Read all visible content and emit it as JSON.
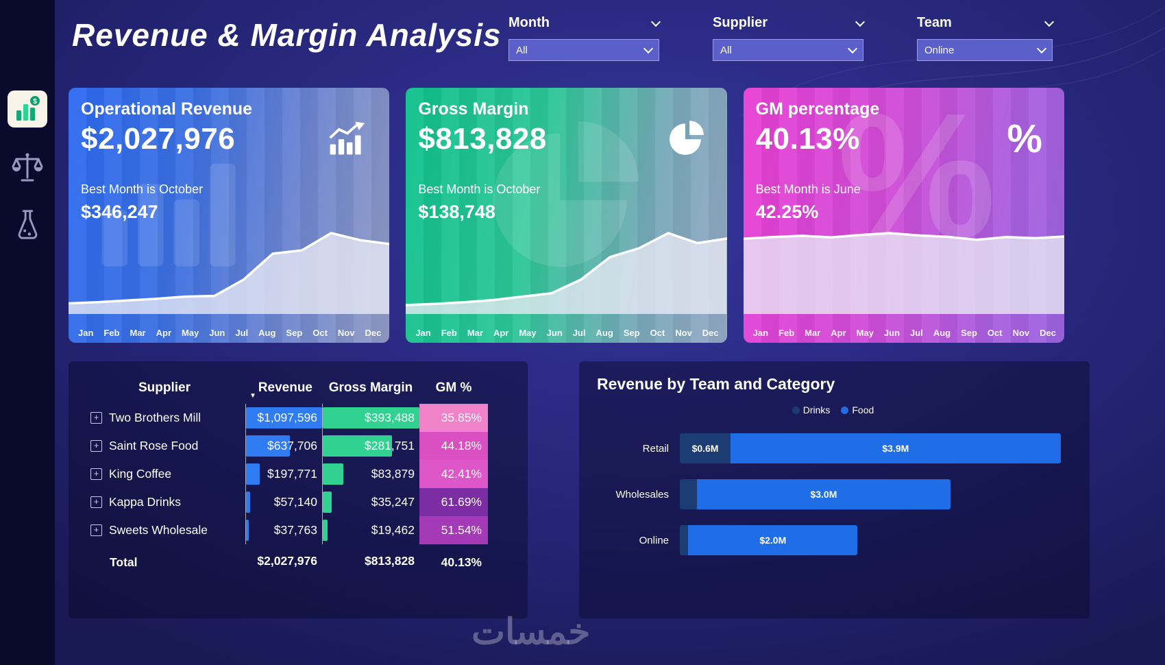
{
  "app": {
    "title": "Revenue & Margin Analysis",
    "watermark": "خمسات"
  },
  "filters": [
    {
      "label": "Month",
      "value": "All"
    },
    {
      "label": "Supplier",
      "value": "All"
    },
    {
      "label": "Team",
      "value": "Online"
    }
  ],
  "sidebar": {
    "items": [
      {
        "name": "revenue-analysis",
        "icon": "bar-chart-dollar-icon",
        "active": true
      },
      {
        "name": "compare",
        "icon": "scales-icon",
        "active": false
      },
      {
        "name": "lab",
        "icon": "flask-icon",
        "active": false
      }
    ]
  },
  "months": [
    "Jan",
    "Feb",
    "Mar",
    "Apr",
    "May",
    "Jun",
    "Jul",
    "Aug",
    "Sep",
    "Oct",
    "Nov",
    "Dec"
  ],
  "kpi_cards": [
    {
      "title": "Operational Revenue",
      "value": "$2,027,976",
      "best_label": "Best Month is October",
      "best_value": "$346,247",
      "icon": "bar-chart-trend-icon",
      "accent": "#2d6af0"
    },
    {
      "title": "Gross Margin",
      "value": "$813,828",
      "best_label": "Best Month is October",
      "best_value": "$138,748",
      "icon": "pie-chart-icon",
      "accent": "#0fc08c"
    },
    {
      "title": "GM percentage",
      "value": "40.13%",
      "best_label": "Best Month is June",
      "best_value": "42.25%",
      "icon": "percent-icon",
      "accent": "#e93fd4"
    }
  ],
  "table": {
    "headers": [
      "Supplier",
      "Revenue",
      "Gross Margin",
      "GM %"
    ],
    "rows": [
      {
        "supplier": "Two Brothers Mill",
        "revenue": "$1,097,596",
        "revenue_value": 1097596,
        "gross_margin": "$393,488",
        "gross_margin_value": 393488,
        "gm_pct": "35.85%",
        "gm_pct_color": "#ef82c8"
      },
      {
        "supplier": "Saint Rose Food",
        "revenue": "$637,706",
        "revenue_value": 637706,
        "gross_margin": "$281,751",
        "gross_margin_value": 281751,
        "gm_pct": "44.18%",
        "gm_pct_color": "#da50c3"
      },
      {
        "supplier": "King Coffee",
        "revenue": "$197,771",
        "revenue_value": 197771,
        "gross_margin": "$83,879",
        "gross_margin_value": 83879,
        "gm_pct": "42.41%",
        "gm_pct_color": "#dd57c9"
      },
      {
        "supplier": "Kappa Drinks",
        "revenue": "$57,140",
        "revenue_value": 57140,
        "gross_margin": "$35,247",
        "gross_margin_value": 35247,
        "gm_pct": "61.69%",
        "gm_pct_color": "#7c2da4"
      },
      {
        "supplier": "Sweets Wholesale",
        "revenue": "$37,763",
        "revenue_value": 37763,
        "gross_margin": "$19,462",
        "gross_margin_value": 19462,
        "gm_pct": "51.54%",
        "gm_pct_color": "#a53ab6"
      }
    ],
    "total": {
      "label": "Total",
      "revenue": "$2,027,976",
      "gross_margin": "$813,828",
      "gm_pct": "40.13%"
    }
  },
  "team_chart": {
    "title": "Revenue by Team and Category",
    "legend": [
      {
        "label": "Drinks",
        "color": "#1c3c74"
      },
      {
        "label": "Food",
        "color": "#1f6ee8"
      }
    ]
  },
  "chart_data": [
    {
      "type": "area",
      "name": "operational-revenue-by-month",
      "x": [
        "Jan",
        "Feb",
        "Mar",
        "Apr",
        "May",
        "Jun",
        "Jul",
        "Aug",
        "Sep",
        "Oct",
        "Nov",
        "Dec"
      ],
      "values": [
        35000,
        40000,
        48000,
        55000,
        65000,
        68000,
        140000,
        255000,
        270000,
        346247,
        315000,
        298000
      ],
      "title": "Operational Revenue monthly trend",
      "ylim": [
        0,
        360000
      ]
    },
    {
      "type": "area",
      "name": "gross-margin-by-month",
      "x": [
        "Jan",
        "Feb",
        "Mar",
        "Apr",
        "May",
        "Jun",
        "Jul",
        "Aug",
        "Sep",
        "Oct",
        "Nov",
        "Dec"
      ],
      "values": [
        11000,
        13000,
        16000,
        20000,
        26000,
        32000,
        56000,
        96000,
        112000,
        138748,
        121000,
        129000
      ],
      "title": "Gross Margin monthly trend",
      "ylim": [
        0,
        145000
      ]
    },
    {
      "type": "area",
      "name": "gm-percentage-by-month",
      "x": [
        "Jan",
        "Feb",
        "Mar",
        "Apr",
        "May",
        "Jun",
        "Jul",
        "Aug",
        "Sep",
        "Oct",
        "Nov",
        "Dec"
      ],
      "values": [
        39.2,
        40.1,
        40.8,
        39.9,
        41.2,
        42.25,
        41.0,
        40.2,
        38.6,
        40.1,
        39.5,
        40.4
      ],
      "title": "GM percentage monthly trend",
      "ylim": [
        0,
        45
      ]
    },
    {
      "type": "bar",
      "name": "revenue-by-team-and-category",
      "orientation": "horizontal-stacked",
      "title": "Revenue by Team and Category",
      "categories": [
        "Retail",
        "Wholesales",
        "Online"
      ],
      "series": [
        {
          "name": "Drinks",
          "color": "#1c3c74",
          "values": [
            0.6,
            0.2,
            0.1
          ]
        },
        {
          "name": "Food",
          "color": "#1f6ee8",
          "values": [
            3.9,
            3.0,
            2.0
          ]
        }
      ],
      "segment_labels": [
        [
          "$0.6M",
          "$3.9M"
        ],
        [
          "",
          "$3.0M"
        ],
        [
          "",
          "$2.0M"
        ]
      ],
      "unit": "$M",
      "xlim": [
        0,
        4.6
      ],
      "legend_position": "top-center"
    },
    {
      "type": "table",
      "name": "supplier-revenue-table",
      "columns": [
        "Supplier",
        "Revenue",
        "Gross Margin",
        "GM %"
      ],
      "rows": [
        [
          "Two Brothers Mill",
          1097596,
          393488,
          "35.85%"
        ],
        [
          "Saint Rose Food",
          637706,
          281751,
          "44.18%"
        ],
        [
          "King Coffee",
          197771,
          83879,
          "42.41%"
        ],
        [
          "Kappa Drinks",
          57140,
          35247,
          "61.69%"
        ],
        [
          "Sweets Wholesale",
          37763,
          19462,
          "51.54%"
        ]
      ],
      "total": [
        "Total",
        2027976,
        813828,
        "40.13%"
      ]
    }
  ]
}
